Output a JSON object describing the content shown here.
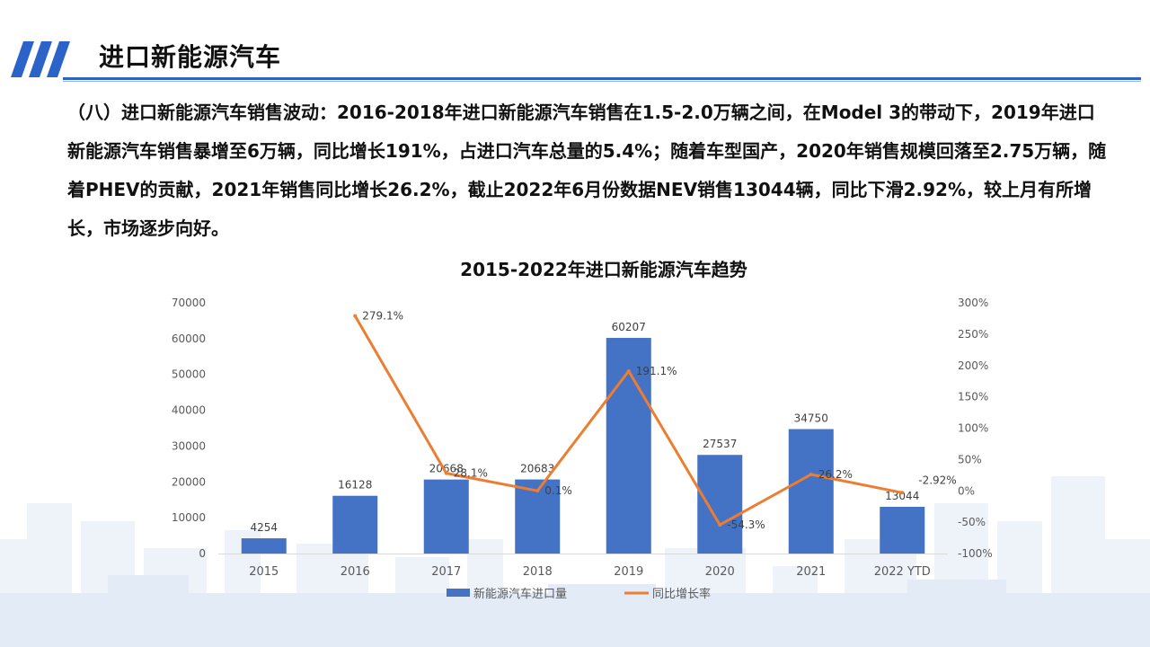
{
  "header": {
    "title": "进口新能源汽车"
  },
  "body": {
    "paragraph": "（八）进口新能源汽车销售波动：2016-2018年进口新能源汽车销售在1.5-2.0万辆之间，在Model 3的带动下，2019年进口新能源汽车销售暴增至6万辆，同比增长191%，占进口汽车总量的5.4%；随着车型国产，2020年销售规模回落至2.75万辆，随着PHEV的贡献，2021年销售同比增长26.2%，截止2022年6月份数据NEV销售13044辆，同比下滑2.92%，较上月有所增长，市场逐步向好。"
  },
  "colors": {
    "accent": "#2C63C9",
    "bar": "#4472C4",
    "line": "#ED7D31"
  },
  "chart_data": {
    "type": "bar+line",
    "title": "2015-2022年进口新能源汽车趋势",
    "categories": [
      "2015",
      "2016",
      "2017",
      "2018",
      "2019",
      "2020",
      "2021",
      "2022 YTD"
    ],
    "series": [
      {
        "name": "新能源汽车进口量",
        "type": "bar",
        "axis": "left",
        "values": [
          4254,
          16128,
          20668,
          20683,
          60207,
          27537,
          34750,
          13044
        ],
        "labels": [
          "4254",
          "16128",
          "20668",
          "20683",
          "60207",
          "27537",
          "34750",
          "13044"
        ]
      },
      {
        "name": "同比增长率",
        "type": "line",
        "axis": "right",
        "values": [
          null,
          279.1,
          28.1,
          0.1,
          191.1,
          -54.3,
          26.2,
          -2.92
        ],
        "labels": [
          "",
          "279.1%",
          "28.1%",
          "0.1%",
          "191.1%",
          "-54.3%",
          "26.2%",
          "-2.92%"
        ]
      }
    ],
    "y_left": {
      "min": 0,
      "max": 70000,
      "ticks": [
        "0",
        "10000",
        "20000",
        "30000",
        "40000",
        "50000",
        "60000",
        "70000"
      ]
    },
    "y_right": {
      "min": -100,
      "max": 300,
      "ticks": [
        "-100%",
        "-50%",
        "0%",
        "50%",
        "100%",
        "150%",
        "200%",
        "250%",
        "300%"
      ]
    },
    "grid": false,
    "legend": "bottom"
  }
}
